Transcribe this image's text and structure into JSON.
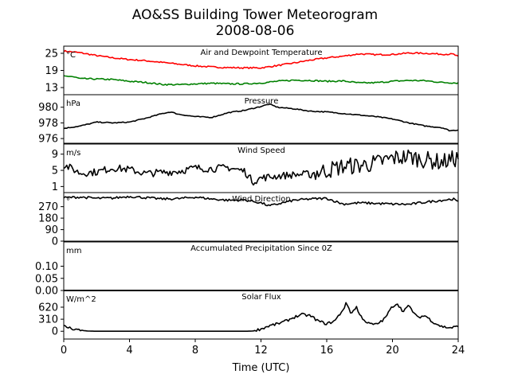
{
  "figure": {
    "title_line1": "AO&SS Building Tower Meteorogram",
    "title_line2": "2008-08-06",
    "xlabel": "Time (UTC)",
    "xlim": [
      0,
      24
    ],
    "xticks": [
      0,
      4,
      8,
      12,
      16,
      20,
      24
    ]
  },
  "chart_data": [
    {
      "type": "line",
      "title": "Air and Dewpoint Temperature",
      "unit": "°C",
      "ylim": [
        10.5,
        27.5
      ],
      "yticks": [
        13,
        19,
        25
      ],
      "series": [
        {
          "color": "#ff0000",
          "x": [
            0,
            1,
            2,
            3,
            4,
            5,
            6,
            7,
            8,
            9,
            10,
            11,
            12,
            13,
            14,
            15,
            16,
            17,
            18,
            19,
            20,
            21,
            22,
            23,
            23.7,
            24
          ],
          "values": [
            25.8,
            25.2,
            24.2,
            23.4,
            22.8,
            22.4,
            21.8,
            21.2,
            20.6,
            20.2,
            20.0,
            19.9,
            19.9,
            20.7,
            21.6,
            22.6,
            23.4,
            24.0,
            24.8,
            24.5,
            24.6,
            25.1,
            25.0,
            24.7,
            24.7,
            23.8
          ]
        },
        {
          "color": "#008000",
          "x": [
            0,
            0.5,
            1,
            2,
            3,
            4,
            5,
            6,
            7,
            8,
            9,
            10,
            11,
            12,
            13,
            14,
            15,
            16,
            17,
            18,
            19,
            20,
            21,
            22,
            23,
            24
          ],
          "values": [
            17.0,
            16.9,
            16.1,
            16.0,
            15.8,
            15.2,
            14.8,
            14.1,
            14.0,
            14.3,
            14.5,
            14.3,
            14.3,
            14.6,
            15.2,
            15.6,
            15.5,
            15.2,
            15.3,
            14.6,
            14.7,
            15.2,
            15.5,
            15.4,
            14.8,
            14.6
          ]
        }
      ]
    },
    {
      "type": "line",
      "title": "Pressure",
      "unit": "hPa",
      "ylim": [
        975.4,
        981.6
      ],
      "yticks": [
        976,
        978,
        980
      ],
      "series": [
        {
          "color": "#000000",
          "x": [
            0,
            1,
            2,
            3,
            4,
            5,
            6,
            6.5,
            7,
            8,
            9,
            10,
            11,
            12,
            12.5,
            13,
            14,
            15,
            16,
            17,
            18,
            19,
            20,
            21,
            22,
            23,
            23.5,
            24
          ],
          "values": [
            977.3,
            977.6,
            978.1,
            978.0,
            978.1,
            978.6,
            979.2,
            979.4,
            979.1,
            978.8,
            978.7,
            979.3,
            979.6,
            980.1,
            980.4,
            980.0,
            979.8,
            979.5,
            979.4,
            979.2,
            979.0,
            978.8,
            978.5,
            978.0,
            977.6,
            977.4,
            977.0,
            977.1
          ]
        }
      ]
    },
    {
      "type": "line",
      "title": "Wind Speed",
      "unit": "m/s",
      "ylim": [
        -0.5,
        11.5
      ],
      "yticks": [
        1,
        5,
        9
      ],
      "series": [
        {
          "color": "#000000",
          "x": [
            0,
            0.5,
            1,
            2,
            3,
            4,
            5,
            6,
            7,
            8,
            9,
            10,
            11,
            11.5,
            12,
            13,
            14,
            15,
            16,
            17,
            18,
            19,
            20,
            21,
            22,
            23,
            24
          ],
          "values": [
            6.3,
            5.4,
            4.3,
            4.6,
            5.6,
            5.2,
            4.2,
            4.5,
            4.8,
            5.6,
            5.4,
            5.7,
            4.8,
            2.2,
            3.1,
            3.6,
            3.9,
            4.1,
            5.0,
            6.0,
            6.2,
            6.8,
            8.0,
            8.4,
            7.6,
            7.0,
            8.1
          ]
        }
      ]
    },
    {
      "type": "line",
      "title": "Wind Direction",
      "unit": "°",
      "ylim": [
        0,
        380
      ],
      "yticks": [
        0,
        90,
        180,
        270
      ],
      "series": [
        {
          "color": "#000000",
          "x": [
            0,
            1,
            2,
            3,
            4,
            5,
            6,
            7,
            8,
            9,
            10,
            11,
            12,
            12.5,
            13,
            14,
            15,
            16,
            17,
            18,
            19,
            20,
            21,
            22,
            23,
            23.7,
            24
          ],
          "values": [
            340,
            345,
            335,
            337,
            350,
            340,
            330,
            333,
            345,
            330,
            320,
            322,
            300,
            275,
            290,
            320,
            330,
            335,
            290,
            300,
            295,
            290,
            288,
            305,
            320,
            330,
            305
          ]
        }
      ]
    },
    {
      "type": "line",
      "title": "Accumulated Precipitation Since 0Z",
      "unit": "mm",
      "ylim": [
        0,
        0.2
      ],
      "yticks": [
        0.0,
        0.05,
        0.1
      ],
      "series": [
        {
          "color": "#000000",
          "x": [
            0,
            24
          ],
          "values": [
            0,
            0
          ]
        }
      ]
    },
    {
      "type": "line",
      "title": "Solar Flux",
      "unit": "W/m^2",
      "ylim": [
        -200,
        1050
      ],
      "yticks": [
        0,
        310,
        620
      ],
      "series": [
        {
          "color": "#000000",
          "x": [
            0,
            0.5,
            1,
            1.5,
            2,
            4,
            6,
            8,
            10,
            11,
            11.5,
            12,
            12.5,
            13,
            13.5,
            14,
            14.5,
            15,
            15.5,
            16,
            16.5,
            17,
            17.2,
            17.5,
            17.8,
            18,
            18.5,
            19,
            19.5,
            20,
            20.3,
            20.6,
            21,
            21.5,
            22,
            22.5,
            23,
            23.5,
            24
          ],
          "values": [
            130,
            70,
            25,
            5,
            0,
            0,
            0,
            0,
            0,
            0,
            5,
            60,
            140,
            190,
            260,
            360,
            430,
            400,
            260,
            190,
            270,
            560,
            730,
            450,
            640,
            420,
            200,
            170,
            310,
            640,
            720,
            520,
            650,
            360,
            400,
            230,
            120,
            90,
            120
          ]
        }
      ]
    }
  ]
}
